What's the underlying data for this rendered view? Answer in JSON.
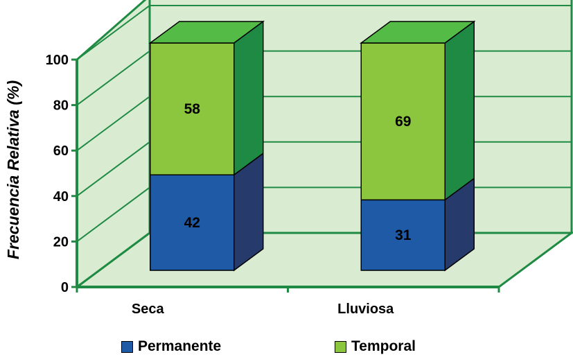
{
  "chart_data": {
    "type": "bar",
    "stacked": true,
    "three_d": true,
    "categories": [
      "Seca",
      "Lluviosa"
    ],
    "series": [
      {
        "name": "Permanente",
        "values": [
          42,
          31
        ],
        "labels": [
          "42",
          "31"
        ],
        "color": "#1f5aa6",
        "side_color": "#263a6c"
      },
      {
        "name": "Temporal",
        "values": [
          58,
          69
        ],
        "labels": [
          "58",
          "69"
        ],
        "color": "#8cc63f",
        "side_color": "#1f8a43",
        "top_color": "#55bb47"
      }
    ],
    "ylabel": "Frecuencia Relativa (%)",
    "xlabel": "",
    "ylim": [
      0,
      100
    ],
    "yticks": [
      "0",
      "20",
      "40",
      "60",
      "80",
      "100"
    ],
    "grid": true,
    "legend_position": "bottom",
    "colors": {
      "wall": "#d9ecd2",
      "wall_line": "#1f8a43"
    }
  }
}
